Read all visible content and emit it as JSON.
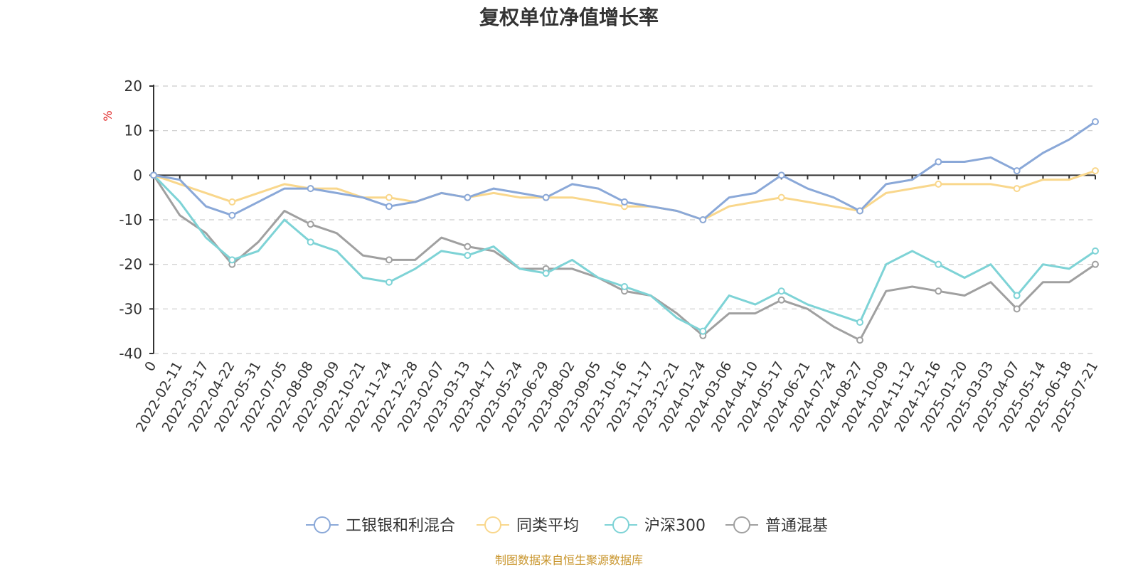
{
  "chart_data": {
    "type": "line",
    "title": "复权单位净值增长率",
    "ylabel": "%",
    "ylim": [
      -40,
      20
    ],
    "yticks": [
      20,
      10,
      0,
      -10,
      -20,
      -30,
      -40
    ],
    "grid": true,
    "legend_position": "bottom-center",
    "source_note": "制图数据来自恒生聚源数据库",
    "x": [
      "0",
      "2022-02-11",
      "2022-03-17",
      "2022-04-22",
      "2022-05-31",
      "2022-07-05",
      "2022-08-08",
      "2022-09-09",
      "2022-10-21",
      "2022-11-24",
      "2022-12-28",
      "2023-02-07",
      "2023-03-13",
      "2023-04-17",
      "2023-05-24",
      "2023-06-29",
      "2023-08-02",
      "2023-09-05",
      "2023-10-16",
      "2023-11-17",
      "2023-12-21",
      "2024-01-24",
      "2024-03-06",
      "2024-04-10",
      "2024-05-17",
      "2024-06-21",
      "2024-07-24",
      "2024-08-27",
      "2024-10-09",
      "2024-11-12",
      "2024-12-16",
      "2025-01-20",
      "2025-03-03",
      "2025-04-07",
      "2025-05-14",
      "2025-06-18",
      "2025-07-21"
    ],
    "series": [
      {
        "name": "工银银和利混合",
        "color": "#8aa8d8",
        "values": [
          0,
          -1,
          -7,
          -9,
          -6,
          -3,
          -3,
          -4,
          -5,
          -7,
          -6,
          -4,
          -5,
          -3,
          -4,
          -5,
          -2,
          -3,
          -6,
          -7,
          -8,
          -10,
          -5,
          -4,
          0,
          -3,
          -5,
          -8,
          -2,
          -1,
          3,
          3,
          4,
          1,
          5,
          8,
          12
        ]
      },
      {
        "name": "同类平均",
        "color": "#f9d78c",
        "values": [
          0,
          -2,
          -4,
          -6,
          -4,
          -2,
          -3,
          -3,
          -5,
          -5,
          -6,
          -4,
          -5,
          -4,
          -5,
          -5,
          -5,
          -6,
          -7,
          -7,
          -8,
          -10,
          -7,
          -6,
          -5,
          -6,
          -7,
          -8,
          -4,
          -3,
          -2,
          -2,
          -2,
          -3,
          -1,
          -1,
          1
        ]
      },
      {
        "name": "沪深300",
        "color": "#7ed3d6",
        "values": [
          0,
          -6,
          -14,
          -19,
          -17,
          -10,
          -15,
          -17,
          -23,
          -24,
          -21,
          -17,
          -18,
          -16,
          -21,
          -22,
          -19,
          -23,
          -25,
          -27,
          -32,
          -35,
          -27,
          -29,
          -26,
          -29,
          -31,
          -33,
          -20,
          -17,
          -20,
          -23,
          -20,
          -27,
          -20,
          -21,
          -17
        ]
      },
      {
        "name": "普通混基",
        "color": "#a0a0a0",
        "values": [
          0,
          -9,
          -13,
          -20,
          -15,
          -8,
          -11,
          -13,
          -18,
          -19,
          -19,
          -14,
          -16,
          -17,
          -21,
          -21,
          -21,
          -23,
          -26,
          -27,
          -31,
          -36,
          -31,
          -31,
          -28,
          -30,
          -34,
          -37,
          -26,
          -25,
          -26,
          -27,
          -24,
          -30,
          -24,
          -24,
          -20
        ]
      }
    ]
  }
}
